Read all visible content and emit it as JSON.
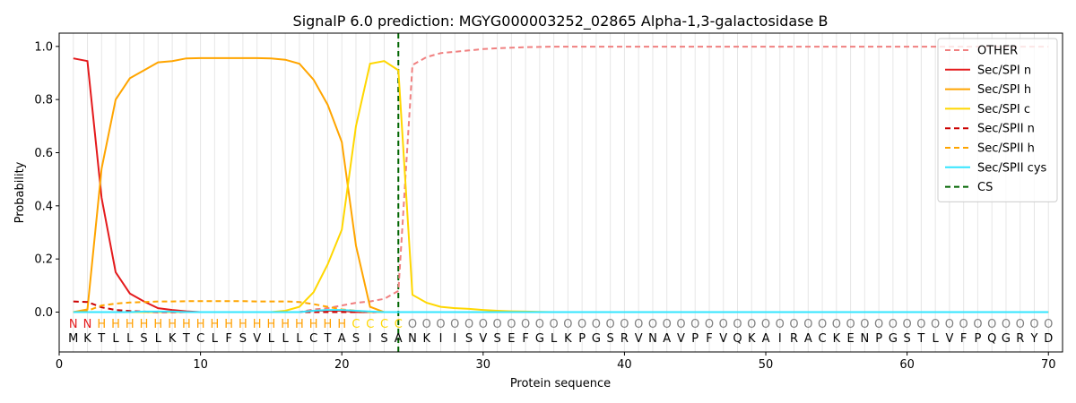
{
  "chart_data": {
    "type": "line",
    "title": "SignalP 6.0 prediction: MGYG000003252_02865 Alpha-1,3-galactosidase B",
    "xlabel": "Protein sequence",
    "ylabel": "Probability",
    "xlim": [
      0,
      71
    ],
    "ylim": [
      -0.15,
      1.05
    ],
    "xticks": [
      0,
      10,
      20,
      30,
      40,
      50,
      60,
      70
    ],
    "yticks": [
      0.0,
      0.2,
      0.4,
      0.6,
      0.8,
      1.0
    ],
    "legend_position": "top-right",
    "sequence": "MKTLLSLKTCLFSVLLLCTASISANKIISVSEFGLKPGSRVNAVPFVQKAIRACKENPGSTLVFPQGRYD",
    "labels": "NNHHHHHHHHHHHHHHHHHHCCCCOOOOOOOOOOOOOOOOOOOOOOOOOOOOOOOOOOOOOOOOOOOOOO",
    "label_colors": {
      "N": "#e41a1c",
      "H": "#ff9f00",
      "C": "#ffd700",
      "O": "#808080"
    },
    "cleavage_site": 24,
    "series": [
      {
        "name": "OTHER",
        "color": "#f08080",
        "dash": "dashed",
        "values": [
          0.0,
          0.0,
          0.0,
          0.0,
          0.0,
          0.0,
          0.0,
          0.0,
          0.0,
          0.0,
          0.0,
          0.0,
          0.0,
          0.0,
          0.0,
          0.0,
          0.0,
          0.01,
          0.015,
          0.025,
          0.035,
          0.04,
          0.05,
          0.08,
          0.93,
          0.96,
          0.975,
          0.98,
          0.985,
          0.99,
          0.993,
          0.995,
          0.997,
          0.998,
          0.999,
          0.999,
          0.999,
          0.999,
          0.999,
          0.999,
          0.999,
          0.999,
          0.999,
          0.999,
          0.999,
          0.999,
          0.999,
          0.999,
          0.999,
          0.999,
          0.999,
          0.999,
          0.999,
          0.999,
          0.999,
          0.999,
          0.999,
          0.999,
          0.999,
          0.999,
          0.999,
          0.999,
          0.999,
          0.999,
          0.999,
          0.999,
          0.999,
          0.999,
          0.999,
          0.999
        ]
      },
      {
        "name": "Sec/SPI n",
        "color": "#e41a1c",
        "dash": "solid",
        "values": [
          0.955,
          0.945,
          0.43,
          0.15,
          0.07,
          0.04,
          0.015,
          0.008,
          0.003,
          0.0,
          0.0,
          0.0,
          0.0,
          0.0,
          0.0,
          0.0,
          0.0,
          0.005,
          0.005,
          0.005,
          0.0,
          0.0,
          0.0,
          0.0,
          0.0,
          0.0,
          0.0,
          0.0,
          0.0,
          0.0,
          0.0,
          0.0,
          0.0,
          0.0,
          0.0,
          0.0,
          0.0,
          0.0,
          0.0,
          0.0,
          0.0,
          0.0,
          0.0,
          0.0,
          0.0,
          0.0,
          0.0,
          0.0,
          0.0,
          0.0,
          0.0,
          0.0,
          0.0,
          0.0,
          0.0,
          0.0,
          0.0,
          0.0,
          0.0,
          0.0,
          0.0,
          0.0,
          0.0,
          0.0,
          0.0,
          0.0,
          0.0,
          0.0,
          0.0,
          0.0
        ]
      },
      {
        "name": "Sec/SPI h",
        "color": "#ffa500",
        "dash": "solid",
        "values": [
          0.0,
          0.01,
          0.54,
          0.8,
          0.88,
          0.91,
          0.94,
          0.945,
          0.955,
          0.956,
          0.956,
          0.956,
          0.956,
          0.956,
          0.955,
          0.95,
          0.935,
          0.875,
          0.78,
          0.64,
          0.25,
          0.02,
          0.0,
          0.0,
          0.0,
          0.0,
          0.0,
          0.0,
          0.0,
          0.0,
          0.0,
          0.0,
          0.0,
          0.0,
          0.0,
          0.0,
          0.0,
          0.0,
          0.0,
          0.0,
          0.0,
          0.0,
          0.0,
          0.0,
          0.0,
          0.0,
          0.0,
          0.0,
          0.0,
          0.0,
          0.0,
          0.0,
          0.0,
          0.0,
          0.0,
          0.0,
          0.0,
          0.0,
          0.0,
          0.0,
          0.0,
          0.0,
          0.0,
          0.0,
          0.0,
          0.0,
          0.0,
          0.0,
          0.0,
          0.0
        ]
      },
      {
        "name": "Sec/SPI c",
        "color": "#ffd700",
        "dash": "solid",
        "values": [
          0.0,
          0.0,
          0.0,
          0.0,
          0.0,
          0.0,
          0.0,
          0.0,
          0.0,
          0.0,
          0.0,
          0.0,
          0.0,
          0.0,
          0.0,
          0.005,
          0.02,
          0.075,
          0.18,
          0.31,
          0.7,
          0.935,
          0.945,
          0.91,
          0.065,
          0.035,
          0.02,
          0.015,
          0.012,
          0.008,
          0.005,
          0.003,
          0.002,
          0.001,
          0.0,
          0.0,
          0.0,
          0.0,
          0.0,
          0.0,
          0.0,
          0.0,
          0.0,
          0.0,
          0.0,
          0.0,
          0.0,
          0.0,
          0.0,
          0.0,
          0.0,
          0.0,
          0.0,
          0.0,
          0.0,
          0.0,
          0.0,
          0.0,
          0.0,
          0.0,
          0.0,
          0.0,
          0.0,
          0.0,
          0.0,
          0.0,
          0.0,
          0.0,
          0.0,
          0.0
        ]
      },
      {
        "name": "Sec/SPII n",
        "color": "#cc0000",
        "dash": "dashed",
        "values": [
          0.04,
          0.038,
          0.018,
          0.008,
          0.004,
          0.002,
          0.0,
          0.0,
          0.0,
          0.0,
          0.0,
          0.0,
          0.0,
          0.0,
          0.0,
          0.0,
          0.0,
          0.0,
          0.0,
          0.0,
          0.0,
          0.0,
          0.0,
          0.0,
          0.0,
          0.0,
          0.0,
          0.0,
          0.0,
          0.0,
          0.0,
          0.0,
          0.0,
          0.0,
          0.0,
          0.0,
          0.0,
          0.0,
          0.0,
          0.0,
          0.0,
          0.0,
          0.0,
          0.0,
          0.0,
          0.0,
          0.0,
          0.0,
          0.0,
          0.0,
          0.0,
          0.0,
          0.0,
          0.0,
          0.0,
          0.0,
          0.0,
          0.0,
          0.0,
          0.0,
          0.0,
          0.0,
          0.0,
          0.0,
          0.0,
          0.0,
          0.0,
          0.0,
          0.0,
          0.0
        ]
      },
      {
        "name": "Sec/SPII h",
        "color": "#ffa500",
        "dash": "dashed",
        "values": [
          0.0,
          0.005,
          0.025,
          0.032,
          0.036,
          0.038,
          0.04,
          0.04,
          0.041,
          0.041,
          0.041,
          0.041,
          0.041,
          0.04,
          0.04,
          0.04,
          0.038,
          0.03,
          0.02,
          0.01,
          0.005,
          0.0,
          0.0,
          0.0,
          0.0,
          0.0,
          0.0,
          0.0,
          0.0,
          0.0,
          0.0,
          0.0,
          0.0,
          0.0,
          0.0,
          0.0,
          0.0,
          0.0,
          0.0,
          0.0,
          0.0,
          0.0,
          0.0,
          0.0,
          0.0,
          0.0,
          0.0,
          0.0,
          0.0,
          0.0,
          0.0,
          0.0,
          0.0,
          0.0,
          0.0,
          0.0,
          0.0,
          0.0,
          0.0,
          0.0,
          0.0,
          0.0,
          0.0,
          0.0,
          0.0,
          0.0,
          0.0,
          0.0,
          0.0,
          0.0
        ]
      },
      {
        "name": "Sec/SPII cys",
        "color": "#33e6ff",
        "dash": "solid",
        "values": [
          0.0,
          0.0,
          0.0,
          0.0,
          0.0,
          0.002,
          0.002,
          0.002,
          0.0,
          0.0,
          0.0,
          0.0,
          0.0,
          0.0,
          0.0,
          0.0,
          0.0,
          0.005,
          0.008,
          0.008,
          0.005,
          0.002,
          0.0,
          0.0,
          0.0,
          0.0,
          0.0,
          0.0,
          0.0,
          0.0,
          0.0,
          0.0,
          0.0,
          0.0,
          0.0,
          0.0,
          0.0,
          0.0,
          0.0,
          0.0,
          0.0,
          0.0,
          0.0,
          0.0,
          0.0,
          0.0,
          0.0,
          0.0,
          0.0,
          0.0,
          0.0,
          0.0,
          0.0,
          0.0,
          0.0,
          0.0,
          0.0,
          0.0,
          0.0,
          0.0,
          0.0,
          0.0,
          0.0,
          0.0,
          0.0,
          0.0,
          0.0,
          0.0,
          0.0,
          0.0
        ]
      }
    ],
    "cs_legend": {
      "name": "CS",
      "color": "#006400",
      "dash": "dashed"
    }
  }
}
